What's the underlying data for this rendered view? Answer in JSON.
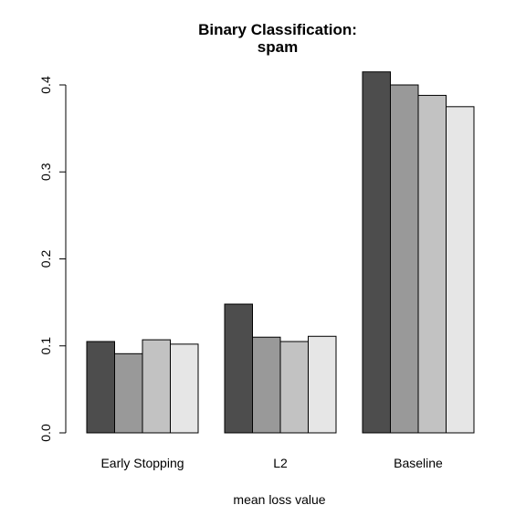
{
  "chart_data": {
    "type": "bar",
    "title": "Binary Classification:",
    "subtitle": "spam",
    "xlabel": "mean loss value",
    "ylabel": "",
    "categories": [
      "Early Stopping",
      "L2",
      "Baseline"
    ],
    "series": [
      {
        "values": [
          0.105,
          0.148,
          0.415
        ],
        "color": "#4d4d4d"
      },
      {
        "values": [
          0.091,
          0.11,
          0.4
        ],
        "color": "#999999"
      },
      {
        "values": [
          0.107,
          0.105,
          0.388
        ],
        "color": "#c2c2c2"
      },
      {
        "values": [
          0.102,
          0.111,
          0.375
        ],
        "color": "#e6e6e6"
      }
    ],
    "ylim": [
      0,
      0.4
    ],
    "yticks": [
      "0.0",
      "0.1",
      "0.2",
      "0.3",
      "0.4"
    ],
    "grid": false,
    "legend": "none"
  }
}
